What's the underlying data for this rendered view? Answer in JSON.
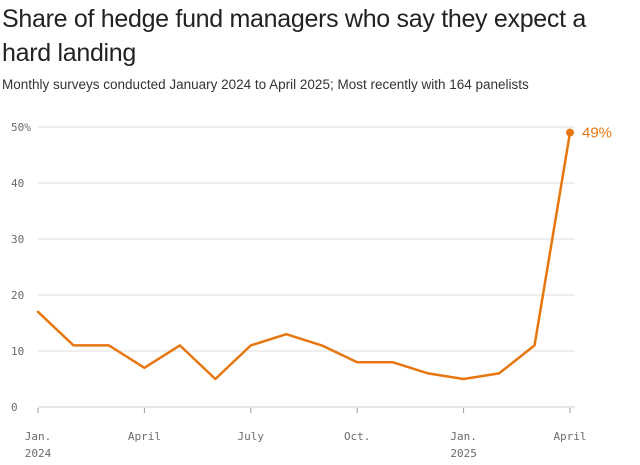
{
  "title": "Share of hedge fund managers who say they expect a hard landing",
  "subtitle": "Monthly surveys conducted January 2024 to April 2025; Most recently with 164 panelists",
  "colors": {
    "line": "#e8760f",
    "grid": "#dddddd",
    "tick": "#6b6b6b"
  },
  "chart_data": {
    "type": "line",
    "title": "Share of hedge fund managers who say they expect a hard landing",
    "subtitle": "Monthly surveys conducted January 2024 to April 2025; Most recently with 164 panelists",
    "x": [
      "2024-01",
      "2024-02",
      "2024-03",
      "2024-04",
      "2024-05",
      "2024-06",
      "2024-07",
      "2024-08",
      "2024-09",
      "2024-10",
      "2024-11",
      "2024-12",
      "2025-01",
      "2025-02",
      "2025-03",
      "2025-04"
    ],
    "series": [
      {
        "values": [
          17,
          11,
          11,
          7,
          11,
          5,
          11,
          13,
          11,
          8,
          8,
          6,
          5,
          6,
          11,
          49
        ]
      }
    ],
    "ylim": [
      0,
      50
    ],
    "yticks": [
      {
        "value": 0,
        "label": "0"
      },
      {
        "value": 10,
        "label": "10"
      },
      {
        "value": 20,
        "label": "20"
      },
      {
        "value": 30,
        "label": "30"
      },
      {
        "value": 40,
        "label": "40"
      },
      {
        "value": 50,
        "label": "50%"
      }
    ],
    "xticks": [
      {
        "x": "2024-01",
        "line1": "Jan.",
        "line2": "2024"
      },
      {
        "x": "2024-04",
        "line1": "April",
        "line2": ""
      },
      {
        "x": "2024-07",
        "line1": "July",
        "line2": ""
      },
      {
        "x": "2024-10",
        "line1": "Oct.",
        "line2": ""
      },
      {
        "x": "2025-01",
        "line1": "Jan.",
        "line2": "2025"
      },
      {
        "x": "2025-04",
        "line1": "April",
        "line2": ""
      }
    ],
    "end_label": "49%",
    "grid": true,
    "legend": "none"
  }
}
